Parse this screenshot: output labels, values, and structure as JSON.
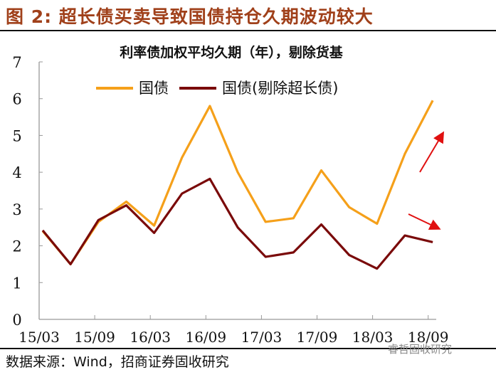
{
  "figure_title": "图 2:  超长债买卖导致国债持仓久期波动较大",
  "source": "数据来源：Wind，招商证券固收研究",
  "watermark": "睿哲固收研究",
  "chart_data": {
    "type": "line",
    "title": "利率债加权平均久期（年），剔除货基",
    "x": [
      "15/03",
      "15/06",
      "15/09",
      "15/12",
      "16/03",
      "16/06",
      "16/09",
      "16/12",
      "17/03",
      "17/06",
      "17/09",
      "17/12",
      "18/03",
      "18/06",
      "18/09"
    ],
    "x_tick_labels": [
      "15/03",
      "15/09",
      "16/03",
      "16/09",
      "17/03",
      "17/09",
      "18/03",
      "18/09"
    ],
    "y_tick_labels": [
      "0",
      "1",
      "2",
      "3",
      "4",
      "5",
      "6",
      "7"
    ],
    "ylim": [
      0,
      7
    ],
    "grid": false,
    "legend": "top",
    "series": [
      {
        "name": "国债",
        "color": "#f5a01a",
        "values": [
          2.4,
          1.5,
          2.65,
          3.2,
          2.55,
          4.4,
          5.8,
          4.0,
          2.65,
          2.75,
          4.05,
          3.05,
          2.6,
          4.5,
          5.95
        ]
      },
      {
        "name": "国债(剔除超长债)",
        "color": "#7a0a0a",
        "values": [
          2.42,
          1.5,
          2.7,
          3.1,
          2.35,
          3.42,
          3.82,
          2.5,
          1.7,
          1.82,
          2.58,
          1.75,
          1.38,
          2.28,
          2.1
        ]
      }
    ],
    "annotations": [
      {
        "type": "arrow",
        "color": "#e01010",
        "direction": "up"
      },
      {
        "type": "arrow",
        "color": "#e01010",
        "direction": "down-right"
      }
    ]
  }
}
